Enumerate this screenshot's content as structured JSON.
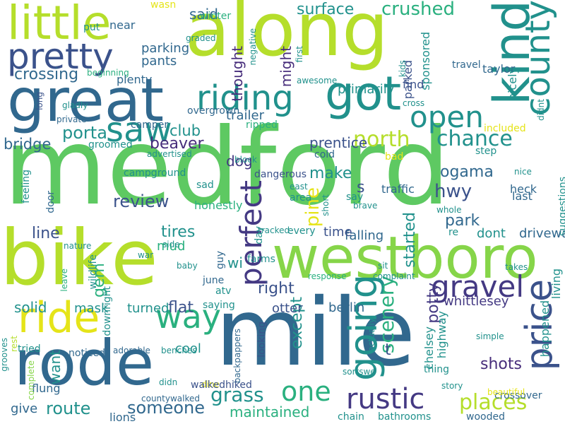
{
  "colors": {
    "background": "#ffffff",
    "lime": "#b5de2b",
    "green": "#5ec962",
    "light_green": "#86d549",
    "teal": "#21918c",
    "teal_green": "#2ab07f",
    "blue": "#31688e",
    "deep_blue": "#3b528b",
    "indigo": "#443983",
    "purple": "#472d7b",
    "yellow": "#e5e419"
  },
  "words": [
    "medford",
    "mile",
    "bike",
    "rode",
    "along",
    "westboro",
    "great",
    "got",
    "kind",
    "little",
    "riding",
    "pretty",
    "saw",
    "ride",
    "going",
    "county",
    "perfect",
    "rustic",
    "gravel",
    "price",
    "open",
    "way",
    "one",
    "north",
    "chance",
    "places",
    "surface",
    "crushed",
    "scenery",
    "grass",
    "hwy",
    "route",
    "pine",
    "porta",
    "someone",
    "review",
    "maintained",
    "beaver",
    "crossing",
    "park",
    "bridge",
    "club",
    "gem",
    "line",
    "started",
    "make",
    "tires",
    "prentice",
    "ogama",
    "s",
    "except",
    "right",
    "potty",
    "shots",
    "t",
    "flat",
    "want",
    "dog",
    "thought",
    "might",
    "said",
    "mud",
    "solid",
    "falling",
    "whittlesey",
    "dont",
    "driveways",
    "time",
    "parking",
    "pants",
    "trailer",
    "give",
    "cool",
    "turned",
    "primarily",
    "mask",
    "berlin",
    "otter",
    "near",
    "put",
    "wasn",
    "winter",
    "taylor",
    "sponsored",
    "parked",
    "travel",
    "find",
    "traffic",
    "heck",
    "last",
    "nicely",
    "living",
    "happened",
    "highway",
    "chelsey",
    "didnt",
    "included",
    "step",
    "nice",
    "suggestions",
    "whole",
    "re",
    "saying",
    "guy",
    "june",
    "atv",
    "wi",
    "farms",
    "every",
    "sit",
    "response",
    "complaint",
    "takes",
    "simple",
    "crossover",
    "story",
    "beautiful",
    "sortswe",
    "backpappers",
    "dine",
    "walkedhiked",
    "countywalked",
    "lions",
    "chain",
    "bathrooms",
    "wooded",
    "flung",
    "tried",
    "noticed",
    "adorable",
    "benches",
    "looking",
    "actually",
    "didn",
    "thing",
    "grooves",
    "rest",
    "complete",
    "downright",
    "leave",
    "baby",
    "war",
    "side",
    "nature",
    "wildlife",
    "campground",
    "door",
    "feeling",
    "overgrown",
    "camper",
    "groomed",
    "private",
    "gladly",
    "long",
    "advertised",
    "block",
    "bad",
    "cold",
    "east",
    "area",
    "say",
    "brave",
    "short",
    "honestly",
    "sad",
    "day",
    "dangerous",
    "ripped",
    "cross",
    "awesome",
    "first",
    "negative",
    "graded",
    "kids",
    "beginning",
    "plenty",
    "tracked",
    "well"
  ]
}
